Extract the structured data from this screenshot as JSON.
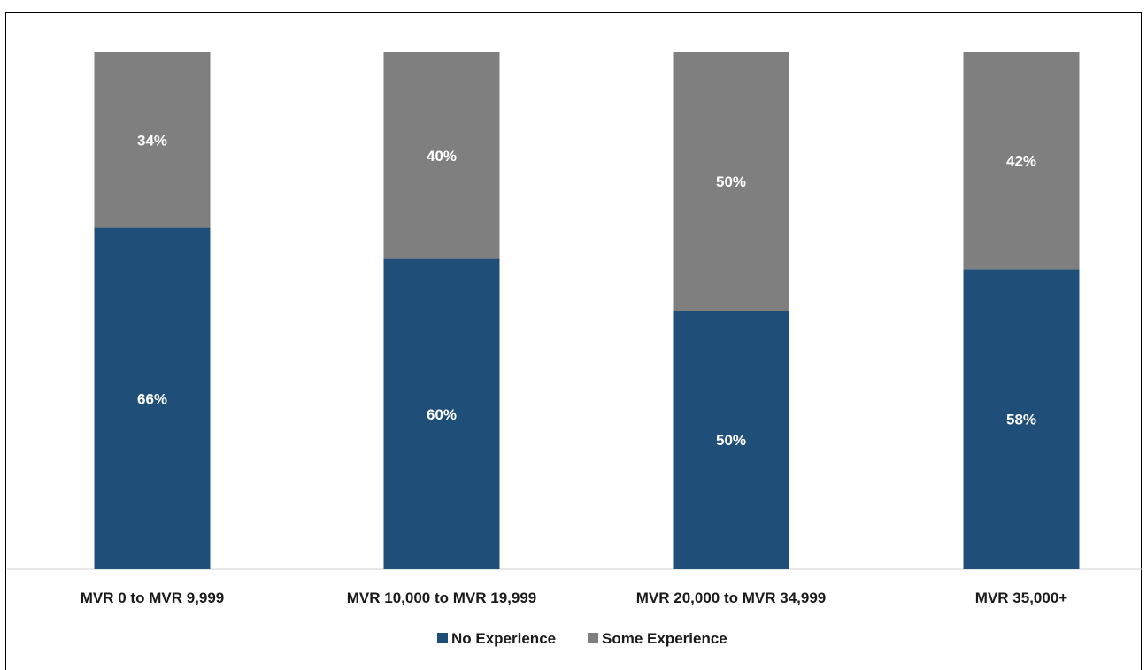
{
  "chart_data": {
    "type": "bar",
    "stacked": true,
    "percent": true,
    "categories": [
      "MVR 0 to MVR 9,999",
      "MVR 10,000 to MVR 19,999",
      "MVR 20,000 to MVR 34,999",
      "MVR 35,000+"
    ],
    "series": [
      {
        "name": "No Experience",
        "values": [
          66,
          60,
          50,
          58
        ],
        "labels": [
          "66%",
          "60%",
          "50%",
          "58%"
        ],
        "color": "#1f4e79"
      },
      {
        "name": "Some Experience",
        "values": [
          34,
          40,
          50,
          42
        ],
        "labels": [
          "34%",
          "40%",
          "50%",
          "42%"
        ],
        "color": "#7f7f7f"
      }
    ],
    "ylim": [
      0,
      100
    ],
    "grid": false,
    "legend_position": "bottom"
  }
}
